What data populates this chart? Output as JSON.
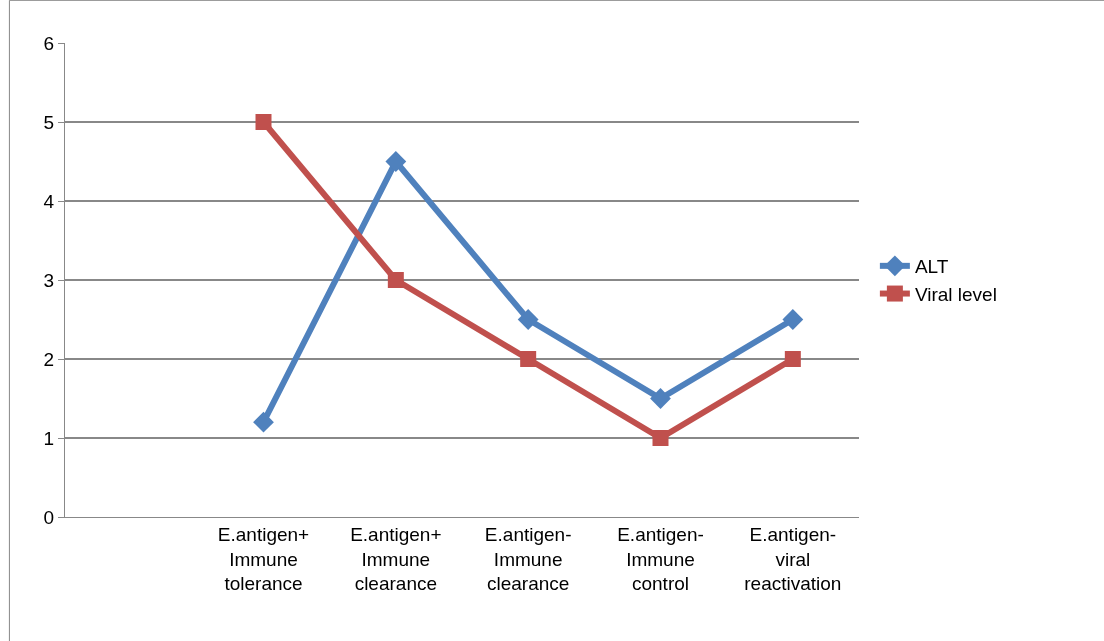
{
  "chart_data": {
    "type": "line",
    "categories": [
      null,
      "E.antigen+ Immune tolerance",
      "E.antigen+ Immune clearance",
      "E.antigen- Immune clearance",
      "E.antigen- Immune control",
      "E.antigen- viral reactivation"
    ],
    "series": [
      {
        "name": "ALT",
        "color": "#4f81bd",
        "marker": "diamond",
        "values": [
          null,
          1.2,
          4.5,
          2.5,
          1.5,
          2.5
        ]
      },
      {
        "name": "Viral level",
        "color": "#c0504d",
        "marker": "square",
        "values": [
          null,
          5,
          3,
          2,
          1,
          2
        ]
      }
    ],
    "ylim": [
      0,
      6
    ],
    "yticks": [
      0,
      1,
      2,
      3,
      4,
      5,
      6
    ],
    "grid": "y",
    "legend": "right",
    "line_style": "solid"
  }
}
